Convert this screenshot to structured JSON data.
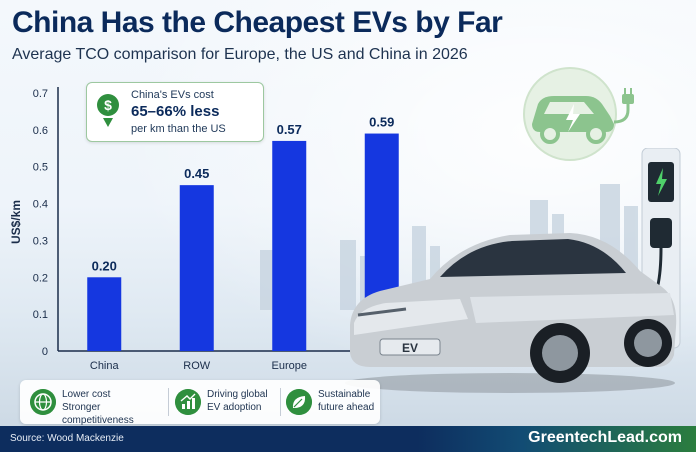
{
  "header": {
    "title": "China Has the Cheapest EVs by Far",
    "subtitle": "Average TCO comparison for Europe, the US and China in 2026"
  },
  "callout": {
    "line1": "China's EVs cost",
    "line2": "65–66% less",
    "line3": "per km than the US",
    "icon": "dollar-down-icon"
  },
  "chart_data": {
    "type": "bar",
    "categories": [
      "China",
      "ROW",
      "Europe",
      ""
    ],
    "values": [
      0.2,
      0.45,
      0.57,
      0.59
    ],
    "value_labels": [
      "0.20",
      "0.45",
      "0.57",
      "0.59"
    ],
    "ylabel": "US$/km",
    "ylim": [
      0,
      0.7
    ],
    "yticks": [
      "0",
      "0.1",
      "0.2",
      "0.3",
      "0.4",
      "0.5",
      "0.6",
      "0.7"
    ],
    "grid": false,
    "bar_color": "#1537e0"
  },
  "features": [
    {
      "icon": "globe-icon",
      "line1": "Lower cost",
      "line2": "Stronger competitiveness"
    },
    {
      "icon": "growth-chart-icon",
      "line1": "Driving global",
      "line2": "EV adoption"
    },
    {
      "icon": "leaf-icon",
      "line1": "Sustainable",
      "line2": "future ahead"
    }
  ],
  "car": {
    "plate": "EV"
  },
  "footer": {
    "source": "Source: Wood Mackenzie",
    "brand": "GreentechLead.com"
  },
  "colors": {
    "navy": "#0b2a5b",
    "green": "#2f8f3e",
    "bar": "#1537e0"
  }
}
